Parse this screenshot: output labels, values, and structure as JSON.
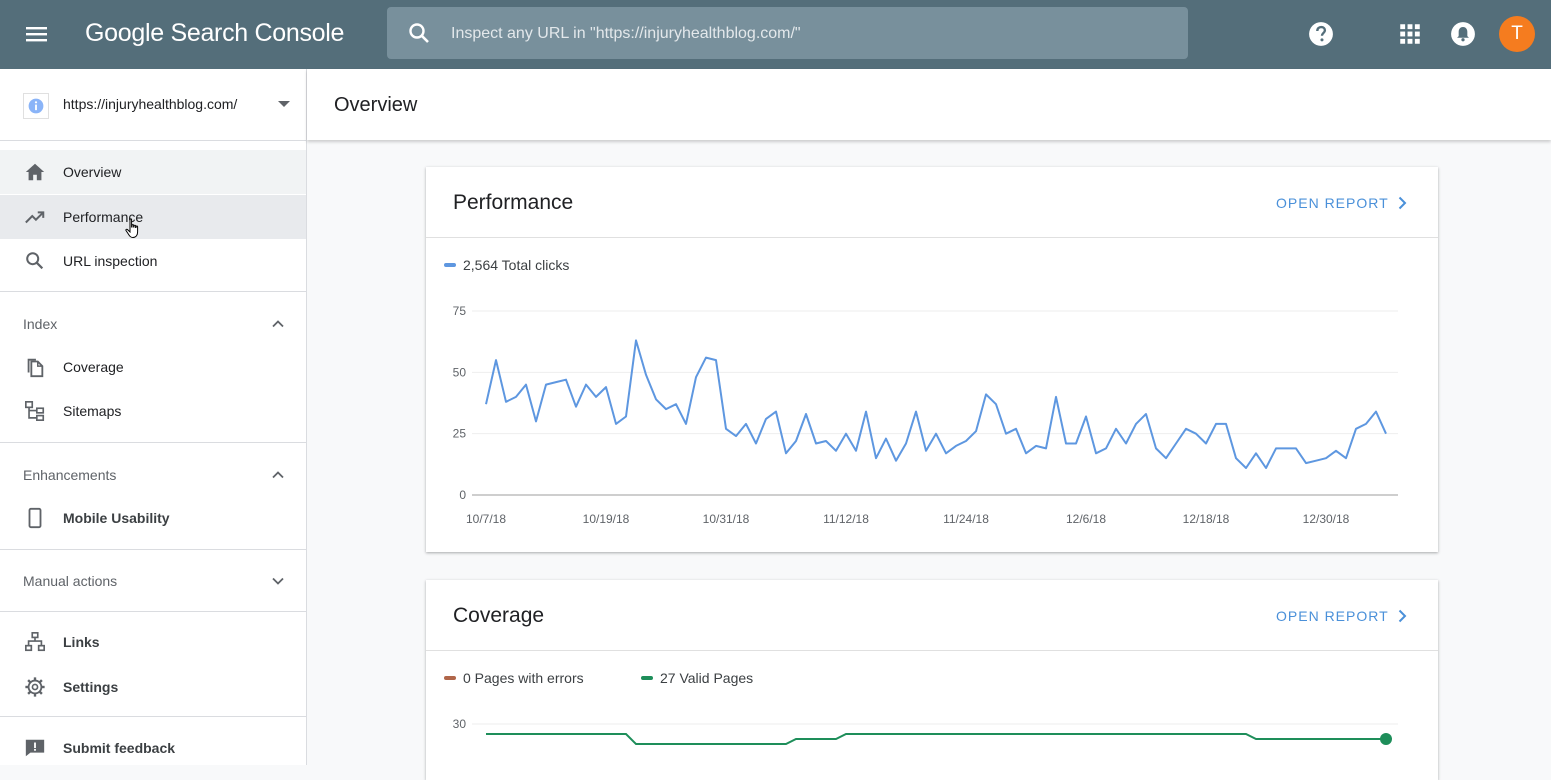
{
  "app": {
    "logo": "Google Search Console",
    "search_placeholder": "Inspect any URL in \"https://injuryhealthblog.com/\"",
    "avatar_letter": "T",
    "accent_color": "#546e7a"
  },
  "sidebar": {
    "property": "https://injuryhealthblog.com/",
    "items": {
      "overview": "Overview",
      "performance": "Performance",
      "url_inspection": "URL inspection",
      "coverage": "Coverage",
      "sitemaps": "Sitemaps",
      "mobile_usability": "Mobile Usability",
      "links": "Links",
      "settings": "Settings",
      "submit_feedback": "Submit feedback"
    },
    "sections": {
      "index": "Index",
      "enhancements": "Enhancements",
      "manual_actions": "Manual actions"
    }
  },
  "header": {
    "title": "Overview"
  },
  "performance_card": {
    "title": "Performance",
    "open_report": "OPEN REPORT",
    "legend": "2,564 Total clicks",
    "color": "#5e97e0"
  },
  "coverage_card": {
    "title": "Coverage",
    "open_report": "OPEN REPORT",
    "legend_errors": "0 Pages with errors",
    "legend_valid": "27 Valid Pages",
    "error_color": "#b0664a",
    "valid_color": "#1e8e5a"
  },
  "chart_data": [
    {
      "type": "line",
      "ylim": [
        0,
        75
      ],
      "yticks": [
        0,
        25,
        50,
        75
      ],
      "xtick_labels": [
        "10/7/18",
        "10/19/18",
        "10/31/18",
        "11/12/18",
        "11/24/18",
        "12/6/18",
        "12/18/18",
        "12/30/18"
      ],
      "grid": true,
      "series": [
        {
          "name": "Total clicks",
          "color": "#5e97e0",
          "values": [
            37,
            55,
            38,
            40,
            45,
            30,
            45,
            46,
            47,
            36,
            45,
            40,
            44,
            29,
            32,
            63,
            49,
            39,
            35,
            37,
            29,
            48,
            56,
            55,
            27,
            24,
            29,
            21,
            31,
            34,
            17,
            22,
            33,
            21,
            22,
            18,
            25,
            18,
            34,
            15,
            23,
            14,
            21,
            34,
            18,
            25,
            17,
            20,
            22,
            26,
            41,
            37,
            25,
            27,
            17,
            20,
            19,
            40,
            21,
            21,
            32,
            17,
            19,
            27,
            21,
            29,
            33,
            19,
            15,
            21,
            27,
            25,
            21,
            29,
            29,
            15,
            11,
            17,
            11,
            19,
            19,
            19,
            13,
            14,
            15,
            18,
            15,
            27,
            29,
            34,
            25
          ]
        }
      ]
    },
    {
      "type": "line",
      "ylim": [
        0,
        30
      ],
      "yticks": [
        30
      ],
      "grid": true,
      "series": [
        {
          "name": "Valid Pages",
          "color": "#1e8e5a",
          "values": [
            28,
            28,
            28,
            28,
            28,
            28,
            28,
            28,
            28,
            28,
            28,
            28,
            28,
            28,
            28,
            26,
            26,
            26,
            26,
            26,
            26,
            26,
            26,
            26,
            26,
            26,
            26,
            26,
            26,
            26,
            26,
            27,
            27,
            27,
            27,
            27,
            28,
            28,
            28,
            28,
            28,
            28,
            28,
            28,
            28,
            28,
            28,
            28,
            28,
            28,
            28,
            28,
            28,
            28,
            28,
            28,
            28,
            28,
            28,
            28,
            28,
            28,
            28,
            28,
            28,
            28,
            28,
            28,
            28,
            28,
            28,
            28,
            28,
            28,
            28,
            28,
            28,
            27,
            27,
            27,
            27,
            27,
            27,
            27,
            27,
            27,
            27,
            27,
            27,
            27,
            27
          ]
        }
      ]
    }
  ]
}
